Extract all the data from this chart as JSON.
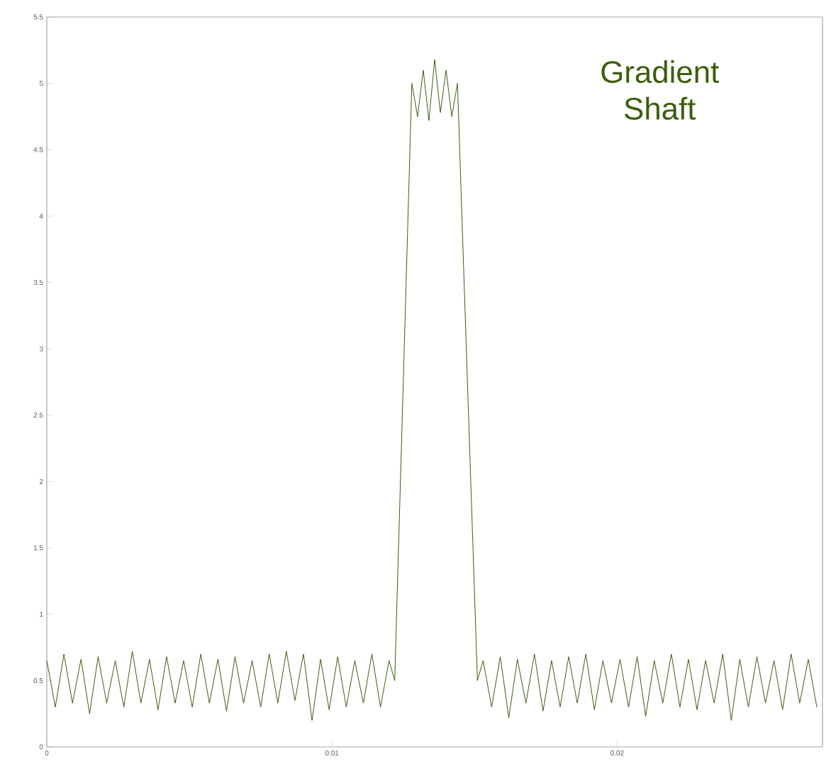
{
  "chart_data": {
    "type": "line",
    "color": "#3a5f0b",
    "x": [
      0,
      0.0003,
      0.0006,
      0.0009,
      0.0012,
      0.0015,
      0.0018,
      0.0021,
      0.0024,
      0.0027,
      0.003,
      0.0033,
      0.0036,
      0.0039,
      0.0042,
      0.0045,
      0.0048,
      0.0051,
      0.0054,
      0.0057,
      0.006,
      0.0063,
      0.0066,
      0.0069,
      0.0072,
      0.0075,
      0.0078,
      0.0081,
      0.0084,
      0.0087,
      0.009,
      0.0093,
      0.0096,
      0.0099,
      0.0102,
      0.0105,
      0.0108,
      0.0111,
      0.0114,
      0.0117,
      0.012,
      0.0122,
      0.0128,
      0.013,
      0.0132,
      0.0134,
      0.0136,
      0.0138,
      0.014,
      0.0142,
      0.0144,
      0.0151,
      0.0153,
      0.0156,
      0.0159,
      0.0162,
      0.0165,
      0.0168,
      0.0171,
      0.0174,
      0.0177,
      0.018,
      0.0183,
      0.0186,
      0.0189,
      0.0192,
      0.0195,
      0.0198,
      0.0201,
      0.0204,
      0.0207,
      0.021,
      0.0213,
      0.0216,
      0.0219,
      0.0222,
      0.0225,
      0.0228,
      0.0231,
      0.0234,
      0.0237,
      0.024,
      0.0243,
      0.0246,
      0.0249,
      0.0252,
      0.0255,
      0.0258,
      0.0261,
      0.0264,
      0.0267,
      0.027
    ],
    "values": [
      0.65,
      0.3,
      0.7,
      0.33,
      0.66,
      0.25,
      0.68,
      0.33,
      0.65,
      0.3,
      0.72,
      0.33,
      0.66,
      0.28,
      0.68,
      0.33,
      0.65,
      0.3,
      0.7,
      0.33,
      0.66,
      0.27,
      0.68,
      0.33,
      0.65,
      0.3,
      0.7,
      0.33,
      0.72,
      0.35,
      0.7,
      0.2,
      0.66,
      0.28,
      0.68,
      0.3,
      0.65,
      0.33,
      0.7,
      0.3,
      0.65,
      0.5,
      5.0,
      4.75,
      5.1,
      4.72,
      5.18,
      4.78,
      5.1,
      4.75,
      5.0,
      0.5,
      0.65,
      0.3,
      0.68,
      0.22,
      0.66,
      0.33,
      0.7,
      0.27,
      0.65,
      0.3,
      0.68,
      0.33,
      0.7,
      0.28,
      0.65,
      0.33,
      0.66,
      0.3,
      0.68,
      0.23,
      0.65,
      0.33,
      0.7,
      0.3,
      0.66,
      0.28,
      0.65,
      0.33,
      0.7,
      0.2,
      0.66,
      0.3,
      0.68,
      0.33,
      0.65,
      0.28,
      0.7,
      0.33,
      0.66,
      0.3
    ],
    "xlim": [
      0,
      0.0272
    ],
    "ylim": [
      0,
      5.5
    ],
    "xticks": [
      0,
      0.01,
      0.02
    ],
    "yticks": [
      0,
      0.5,
      1,
      1.5,
      2,
      2.5,
      3,
      3.5,
      4,
      4.5,
      5,
      5.5
    ],
    "annotations": [
      "Gradient Shaft"
    ]
  }
}
